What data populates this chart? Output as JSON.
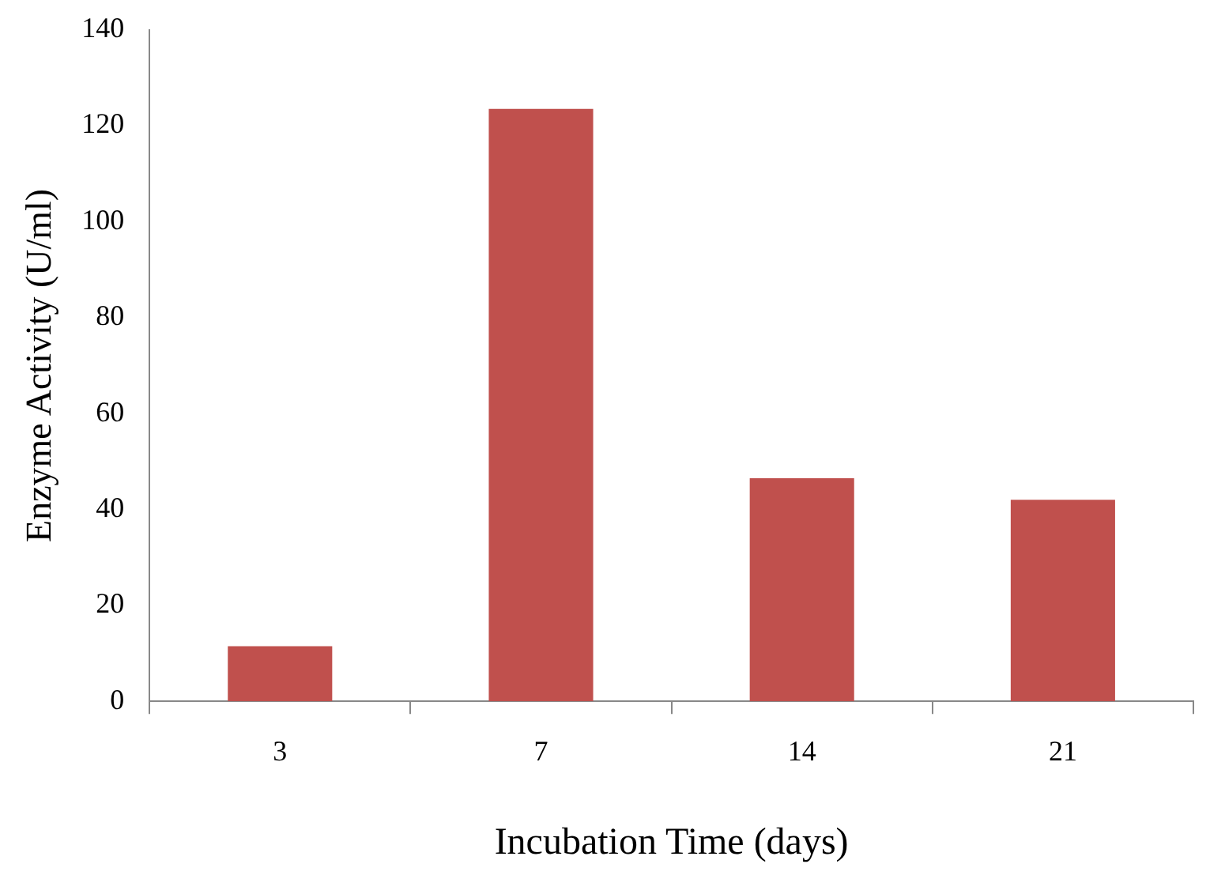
{
  "chart_data": {
    "type": "bar",
    "xlabel": "Incubation Time (days)",
    "ylabel": "Enzyme Activity (U/ml)",
    "categories": [
      "3",
      "7",
      "14",
      "21"
    ],
    "values": [
      11.5,
      123.5,
      46.5,
      42
    ],
    "color": "#c0504d",
    "ylim": [
      0,
      140
    ],
    "yticks": [
      0,
      20,
      40,
      60,
      80,
      100,
      120,
      140
    ],
    "grid": false,
    "legend": false
  }
}
